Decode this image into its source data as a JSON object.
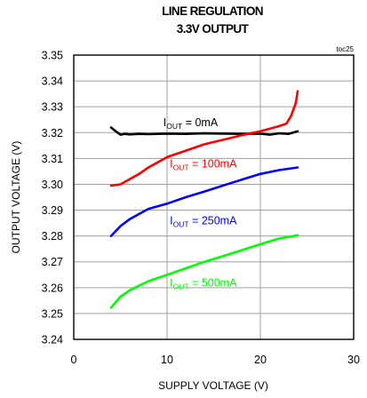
{
  "chart_data": {
    "type": "line",
    "title": "LINE REGULATION",
    "subtitle": "3.3V OUTPUT",
    "figure_id": "toc25",
    "xlabel": "SUPPLY VOLTAGE (V)",
    "ylabel": "OUTPUT VOLTAGE (V)",
    "xlim": [
      0,
      30
    ],
    "ylim": [
      3.24,
      3.35
    ],
    "x_ticks": [
      "0",
      "10",
      "20",
      "30"
    ],
    "y_ticks": [
      "3.24",
      "3.25",
      "3.26",
      "3.27",
      "3.28",
      "3.29",
      "3.30",
      "3.31",
      "3.32",
      "3.33",
      "3.34",
      "3.35"
    ],
    "grid": true,
    "series": [
      {
        "name": "IOUT = 0mA",
        "label_main": "I",
        "label_sub": "OUT",
        "label_rest": " = 0mA",
        "color": "#000000",
        "x": [
          4,
          4.5,
          5,
          5.5,
          6,
          7,
          8,
          10,
          12,
          14,
          16,
          18,
          20,
          21,
          22,
          23,
          24
        ],
        "y": [
          3.322,
          3.3205,
          3.3192,
          3.3195,
          3.3193,
          3.3195,
          3.3194,
          3.3196,
          3.3195,
          3.3197,
          3.3196,
          3.3195,
          3.3196,
          3.3192,
          3.3197,
          3.3195,
          3.3205
        ]
      },
      {
        "name": "IOUT = 100mA",
        "label_main": "I",
        "label_sub": "OUT",
        "label_rest": " = 100mA",
        "color": "#ff0000",
        "x": [
          4,
          5,
          6,
          7,
          8,
          9,
          10,
          12,
          14,
          16,
          18,
          20,
          21,
          22,
          22.8,
          23.3,
          23.8,
          24
        ],
        "y": [
          3.2995,
          3.3,
          3.302,
          3.304,
          3.3065,
          3.3085,
          3.3105,
          3.313,
          3.3155,
          3.3172,
          3.319,
          3.3205,
          3.3215,
          3.3225,
          3.3235,
          3.3265,
          3.3315,
          3.336
        ]
      },
      {
        "name": "IOUT = 250mA",
        "label_main": "I",
        "label_sub": "OUT",
        "label_rest": " = 250mA",
        "color": "#0000ff",
        "x": [
          4,
          5,
          6,
          7,
          8,
          10,
          12,
          14,
          16,
          18,
          20,
          22,
          24
        ],
        "y": [
          3.28,
          3.2838,
          3.2865,
          3.2885,
          3.2905,
          3.2925,
          3.295,
          3.2972,
          3.2995,
          3.3018,
          3.304,
          3.3055,
          3.3065
        ]
      },
      {
        "name": "IOUT = 500mA",
        "label_main": "I",
        "label_sub": "OUT",
        "label_rest": " = 500mA",
        "color": "#00ff00",
        "x": [
          4,
          5,
          6,
          7,
          8,
          10,
          12,
          14,
          16,
          18,
          20,
          22,
          24
        ],
        "y": [
          3.2523,
          3.2565,
          3.259,
          3.2608,
          3.2625,
          3.265,
          3.2675,
          3.27,
          3.2722,
          3.2745,
          3.2768,
          3.279,
          3.2803
        ]
      }
    ],
    "annotations": [
      {
        "series": 0,
        "x": 9.6,
        "y": 3.3225,
        "color": "#000000"
      },
      {
        "series": 1,
        "x": 10.3,
        "y": 3.3065,
        "color": "#ff0000"
      },
      {
        "series": 2,
        "x": 10.3,
        "y": 3.2845,
        "color": "#0000ff"
      },
      {
        "series": 3,
        "x": 10.3,
        "y": 3.2605,
        "color": "#00ff00"
      }
    ]
  }
}
